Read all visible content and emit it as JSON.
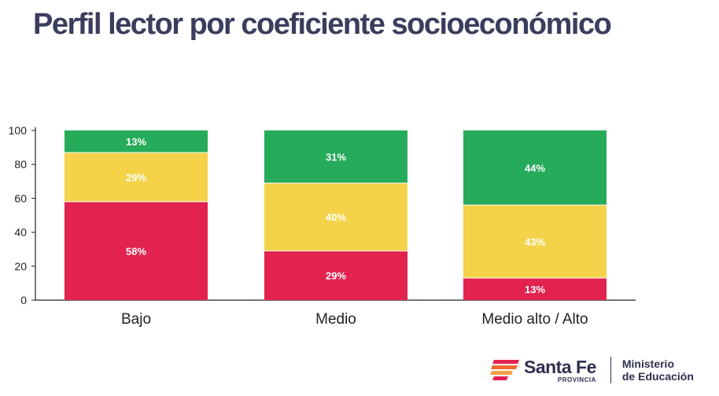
{
  "title": "Perfil lector por coeficiente socioeconómico",
  "chart_data": {
    "type": "bar",
    "stacked": true,
    "categories": [
      "Bajo",
      "Medio",
      "Medio alto / Alto"
    ],
    "series": [
      {
        "color": "#e2224f",
        "values": [
          58,
          29,
          13
        ],
        "labels": [
          "58%",
          "29%",
          "13%"
        ]
      },
      {
        "color": "#f4d34a",
        "values": [
          29,
          40,
          43
        ],
        "labels": [
          "29%",
          "40%",
          "43%"
        ]
      },
      {
        "color": "#26ab5b",
        "values": [
          13,
          31,
          44
        ],
        "labels": [
          "13%",
          "31%",
          "44%"
        ]
      }
    ],
    "ylim": [
      0,
      100
    ],
    "yticks": [
      0,
      20,
      40,
      60,
      80,
      100
    ],
    "grid": false,
    "legend": "none"
  },
  "footer": {
    "brand_name": "Santa Fe",
    "brand_sub": "PROVINCIA",
    "ministry_line1": "Ministerio",
    "ministry_line2": "de Educación"
  }
}
